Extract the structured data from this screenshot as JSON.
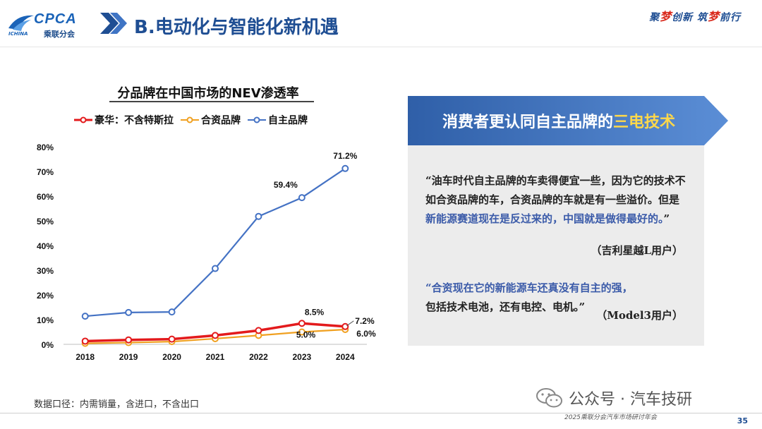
{
  "header": {
    "logo_text": "CPCA",
    "logo_sub": "乘联分会",
    "logo_small": "ICHINA",
    "title": "B.电动化与智能化新机遇",
    "slogan_parts": [
      "聚",
      "梦",
      "创新  筑",
      "梦",
      "前行"
    ]
  },
  "chart_data": {
    "type": "line",
    "title": "分品牌在中国市场的NEV渗透率",
    "x": [
      "2018",
      "2019",
      "2020",
      "2021",
      "2022",
      "2023",
      "2024"
    ],
    "ylim": [
      0,
      80
    ],
    "yticks": [
      "0%",
      "10%",
      "20%",
      "30%",
      "40%",
      "50%",
      "60%",
      "70%",
      "80%"
    ],
    "grid": false,
    "legend_position": "top",
    "series": [
      {
        "name": "豪华：不含特斯拉",
        "color": "#e31a1c",
        "values": [
          1.3,
          1.8,
          2.1,
          3.6,
          5.6,
          8.5,
          7.2
        ]
      },
      {
        "name": "合资品牌",
        "color": "#f0a020",
        "values": [
          0.4,
          0.7,
          1.1,
          2.3,
          3.6,
          5.0,
          6.0
        ]
      },
      {
        "name": "自主品牌",
        "color": "#4472c4",
        "values": [
          11.4,
          12.9,
          13.1,
          30.7,
          51.8,
          59.4,
          71.2
        ]
      }
    ],
    "annotations": [
      {
        "series": 2,
        "index": 5,
        "label": "59.4%"
      },
      {
        "series": 2,
        "index": 6,
        "label": "71.2%"
      },
      {
        "series": 0,
        "index": 5,
        "label": "8.5%"
      },
      {
        "series": 0,
        "index": 6,
        "label": "7.2%"
      },
      {
        "series": 1,
        "index": 5,
        "label": "5.0%"
      },
      {
        "series": 1,
        "index": 6,
        "label": "6.0%"
      }
    ]
  },
  "footnote": "数据口径：内需销量，含进口，不含出口",
  "panel": {
    "banner_pre": "消费者更认同自主品牌的",
    "banner_highlight": "三电技术",
    "quote1_a": "“油车时代自主品牌的车卖得便宜一些，因为它的技术不如合资品牌的车，合资品牌的车就是有一些溢价。但是",
    "quote1_b": "新能源赛道现在是反过来的，中国就是做得最好的。",
    "quote1_c": "”",
    "quote1_source": "（吉利星越L用户）",
    "quote2_a": "“合资现在它的新能源车还真没有自主的强，",
    "quote2_b": "包括技术电池，还有电控、电机。”",
    "quote2_source": "（Model3用户）"
  },
  "watermark": "公众号 · 汽车技研",
  "footer": "2025乘联分会汽车市场研讨年会",
  "page_number": "35"
}
